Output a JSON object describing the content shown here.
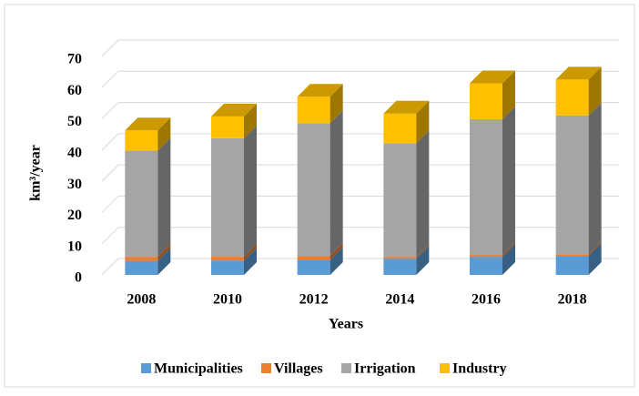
{
  "chart_data": {
    "type": "bar3d_stacked",
    "categories": [
      "2008",
      "2010",
      "2012",
      "2014",
      "2016",
      "2018"
    ],
    "series": [
      {
        "name": "Municipalities",
        "color": "#5b9bd5",
        "values": [
          4.5,
          4.6,
          4.8,
          5.2,
          5.8,
          6.1
        ]
      },
      {
        "name": "Villages",
        "color": "#ed7d31",
        "values": [
          1.3,
          1.2,
          1.3,
          0.5,
          0.6,
          0.5
        ]
      },
      {
        "name": "Irrigation",
        "color": "#a5a5a5",
        "values": [
          34,
          38,
          42.5,
          36.5,
          43.5,
          44.5
        ]
      },
      {
        "name": "Industry",
        "color": "#ffc000",
        "values": [
          6.5,
          7,
          8.5,
          9.5,
          11.5,
          11.5
        ]
      }
    ],
    "ylim": [
      0,
      70
    ],
    "yticks": [
      0,
      10,
      20,
      30,
      40,
      50,
      60,
      70
    ],
    "ylabel": "km³/year",
    "xlabel": "Years",
    "grid": true,
    "legend": "bottom"
  }
}
